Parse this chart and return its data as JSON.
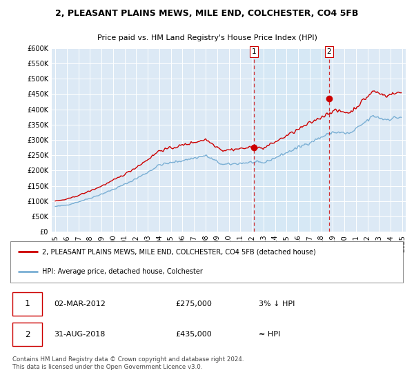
{
  "title": "2, PLEASANT PLAINS MEWS, MILE END, COLCHESTER, CO4 5FB",
  "subtitle": "Price paid vs. HM Land Registry's House Price Index (HPI)",
  "background_color": "#dce9f5",
  "legend_label_red": "2, PLEASANT PLAINS MEWS, MILE END, COLCHESTER, CO4 5FB (detached house)",
  "legend_label_blue": "HPI: Average price, detached house, Colchester",
  "footer": "Contains HM Land Registry data © Crown copyright and database right 2024.\nThis data is licensed under the Open Government Licence v3.0.",
  "annotation1_date": "02-MAR-2012",
  "annotation1_price": "£275,000",
  "annotation1_note": "3% ↓ HPI",
  "annotation2_date": "31-AUG-2018",
  "annotation2_price": "£435,000",
  "annotation2_note": "≈ HPI",
  "ylim_min": 0,
  "ylim_max": 600000,
  "red_color": "#cc0000",
  "blue_color": "#7aafd4",
  "shade_color": "#d6e8f5",
  "sale1_year": 2012.17,
  "sale1_price": 275000,
  "sale2_year": 2018.67,
  "sale2_price": 435000,
  "xtick_years": [
    1995,
    1996,
    1997,
    1998,
    1999,
    2000,
    2001,
    2002,
    2003,
    2004,
    2005,
    2006,
    2007,
    2008,
    2009,
    2010,
    2011,
    2012,
    2013,
    2014,
    2015,
    2016,
    2017,
    2018,
    2019,
    2020,
    2021,
    2022,
    2023,
    2024,
    2025
  ]
}
